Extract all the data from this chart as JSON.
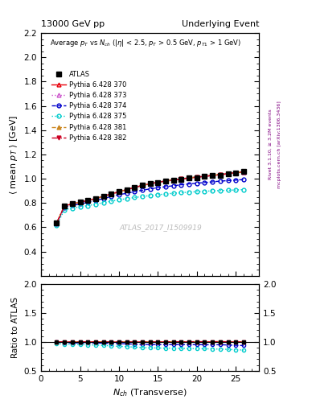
{
  "title_left": "13000 GeV pp",
  "title_right": "Underlying Event",
  "watermark": "ATLAS_2017_I1509919",
  "right_label_top": "Rivet 3.1.10, ≥ 3.2M events",
  "right_label_bottom": "mcplots.cern.ch [arXiv:1306.3436]",
  "ylim_main": [
    0.2,
    2.2
  ],
  "ylim_ratio": [
    0.5,
    2.0
  ],
  "yticks_main": [
    0.4,
    0.6,
    0.8,
    1.0,
    1.2,
    1.4,
    1.6,
    1.8,
    2.0,
    2.2
  ],
  "yticks_ratio": [
    0.5,
    1.0,
    1.5,
    2.0
  ],
  "xlim": [
    0,
    28
  ],
  "nch": [
    2,
    3,
    4,
    5,
    6,
    7,
    8,
    9,
    10,
    11,
    12,
    13,
    14,
    15,
    16,
    17,
    18,
    19,
    20,
    21,
    22,
    23,
    24,
    25,
    26
  ],
  "atlas_y": [
    0.635,
    0.775,
    0.795,
    0.805,
    0.82,
    0.835,
    0.855,
    0.875,
    0.895,
    0.91,
    0.93,
    0.945,
    0.96,
    0.97,
    0.98,
    0.988,
    0.995,
    1.005,
    1.01,
    1.018,
    1.025,
    1.03,
    1.04,
    1.05,
    1.06
  ],
  "py370_y": [
    0.635,
    0.775,
    0.793,
    0.806,
    0.82,
    0.836,
    0.855,
    0.874,
    0.892,
    0.91,
    0.928,
    0.944,
    0.958,
    0.97,
    0.98,
    0.988,
    0.996,
    1.005,
    1.012,
    1.018,
    1.026,
    1.032,
    1.04,
    1.048,
    1.055
  ],
  "py373_y": [
    0.635,
    0.775,
    0.793,
    0.806,
    0.82,
    0.836,
    0.855,
    0.874,
    0.892,
    0.91,
    0.928,
    0.944,
    0.958,
    0.97,
    0.98,
    0.988,
    0.996,
    1.005,
    1.012,
    1.018,
    1.026,
    1.032,
    1.04,
    1.048,
    1.055
  ],
  "py374_y": [
    0.63,
    0.765,
    0.78,
    0.792,
    0.805,
    0.82,
    0.836,
    0.852,
    0.868,
    0.88,
    0.893,
    0.905,
    0.916,
    0.926,
    0.934,
    0.942,
    0.95,
    0.957,
    0.963,
    0.968,
    0.974,
    0.98,
    0.984,
    0.988,
    0.993
  ],
  "py375_y": [
    0.615,
    0.745,
    0.758,
    0.768,
    0.778,
    0.79,
    0.803,
    0.815,
    0.826,
    0.836,
    0.845,
    0.853,
    0.861,
    0.868,
    0.874,
    0.88,
    0.885,
    0.889,
    0.893,
    0.896,
    0.9,
    0.902,
    0.905,
    0.907,
    0.91
  ],
  "py381_y": [
    0.635,
    0.775,
    0.793,
    0.806,
    0.82,
    0.836,
    0.855,
    0.874,
    0.892,
    0.91,
    0.928,
    0.944,
    0.958,
    0.97,
    0.982,
    0.99,
    0.998,
    1.007,
    1.014,
    1.02,
    1.028,
    1.035,
    1.042,
    1.05,
    1.058
  ],
  "py382_y": [
    0.635,
    0.775,
    0.793,
    0.806,
    0.82,
    0.836,
    0.855,
    0.874,
    0.892,
    0.91,
    0.928,
    0.944,
    0.958,
    0.97,
    0.982,
    0.99,
    0.998,
    1.007,
    1.014,
    1.02,
    1.028,
    1.035,
    1.042,
    1.05,
    1.058
  ],
  "color_atlas": "#000000",
  "color_370": "#e8000b",
  "color_373": "#cc55cc",
  "color_374": "#0000cc",
  "color_375": "#00cccc",
  "color_381": "#cc8822",
  "color_382": "#cc0022",
  "right_text_color": "#800080"
}
